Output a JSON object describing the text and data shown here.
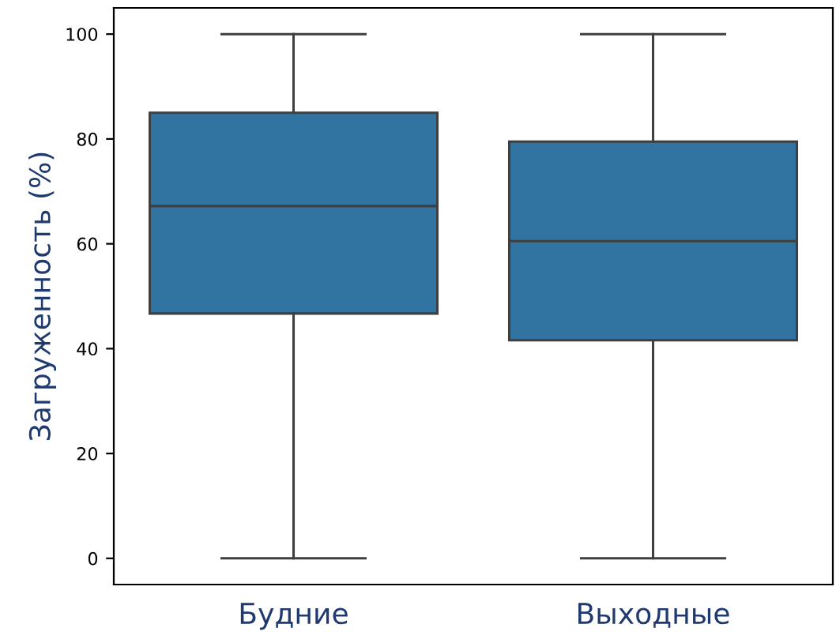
{
  "chart_data": {
    "type": "box",
    "ylabel": "Загруженность (%)",
    "categories": [
      "Будние",
      "Выходные"
    ],
    "boxes": [
      {
        "low": 0,
        "q1": 46.7,
        "median": 67.2,
        "q3": 85,
        "high": 100
      },
      {
        "low": 0,
        "q1": 41.6,
        "median": 60.5,
        "q3": 79.5,
        "high": 100
      }
    ],
    "color": "#3274a1",
    "ylim": [
      -5,
      105
    ],
    "yticks": [
      0,
      20,
      40,
      60,
      80,
      100
    ],
    "grid": false
  }
}
